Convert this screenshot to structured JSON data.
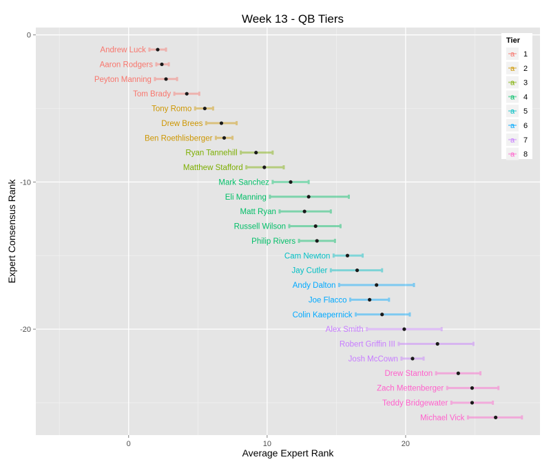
{
  "chart_data": {
    "type": "errorbar",
    "title": "Week 13 - QB Tiers",
    "xlabel": "Average Expert Rank",
    "ylabel": "Expert Consensus Rank",
    "xlim": [
      -6.7,
      29.7
    ],
    "ylim": [
      -27.2,
      0.5
    ],
    "x_ticks": [
      0,
      10,
      20
    ],
    "y_ticks": [
      0,
      -10,
      -20
    ],
    "x_tick_labels": [
      "0",
      "10",
      "20"
    ],
    "y_tick_labels": [
      "0",
      "-10",
      "-20"
    ],
    "grid": true,
    "legend_position": "top-right",
    "legend_title": "Tier",
    "legend_key_glyph": "a",
    "tiers": [
      {
        "tier": "1",
        "color": "#F8766D"
      },
      {
        "tier": "2",
        "color": "#CD9600"
      },
      {
        "tier": "3",
        "color": "#7CAE00"
      },
      {
        "tier": "4",
        "color": "#00BE67"
      },
      {
        "tier": "5",
        "color": "#00BFC4"
      },
      {
        "tier": "6",
        "color": "#00A9FF"
      },
      {
        "tier": "7",
        "color": "#C77CFF"
      },
      {
        "tier": "8",
        "color": "#FF61CC"
      }
    ],
    "series": [
      {
        "name": "Andrew Luck",
        "tier": "1",
        "rank": 1,
        "x": 2.1,
        "xmin": 1.5,
        "xmax": 2.7
      },
      {
        "name": "Aaron Rodgers",
        "tier": "1",
        "rank": 2,
        "x": 2.4,
        "xmin": 2.0,
        "xmax": 2.9
      },
      {
        "name": "Peyton Manning",
        "tier": "1",
        "rank": 3,
        "x": 2.7,
        "xmin": 1.9,
        "xmax": 3.5
      },
      {
        "name": "Tom Brady",
        "tier": "1",
        "rank": 4,
        "x": 4.2,
        "xmin": 3.3,
        "xmax": 5.1
      },
      {
        "name": "Tony Romo",
        "tier": "2",
        "rank": 5,
        "x": 5.5,
        "xmin": 4.8,
        "xmax": 6.1
      },
      {
        "name": "Drew Brees",
        "tier": "2",
        "rank": 6,
        "x": 6.7,
        "xmin": 5.6,
        "xmax": 7.8
      },
      {
        "name": "Ben Roethlisberger",
        "tier": "2",
        "rank": 7,
        "x": 6.9,
        "xmin": 6.3,
        "xmax": 7.5
      },
      {
        "name": "Ryan Tannehill",
        "tier": "3",
        "rank": 8,
        "x": 9.2,
        "xmin": 8.1,
        "xmax": 10.4
      },
      {
        "name": "Matthew Stafford",
        "tier": "3",
        "rank": 9,
        "x": 9.8,
        "xmin": 8.5,
        "xmax": 11.2
      },
      {
        "name": "Mark Sanchez",
        "tier": "4",
        "rank": 10,
        "x": 11.7,
        "xmin": 10.4,
        "xmax": 13.0
      },
      {
        "name": "Eli Manning",
        "tier": "4",
        "rank": 11,
        "x": 13.0,
        "xmin": 10.2,
        "xmax": 15.9
      },
      {
        "name": "Matt Ryan",
        "tier": "4",
        "rank": 12,
        "x": 12.7,
        "xmin": 10.9,
        "xmax": 14.6
      },
      {
        "name": "Russell Wilson",
        "tier": "4",
        "rank": 13,
        "x": 13.5,
        "xmin": 11.6,
        "xmax": 15.3
      },
      {
        "name": "Philip Rivers",
        "tier": "4",
        "rank": 14,
        "x": 13.6,
        "xmin": 12.3,
        "xmax": 14.9
      },
      {
        "name": "Cam Newton",
        "tier": "5",
        "rank": 15,
        "x": 15.8,
        "xmin": 14.8,
        "xmax": 16.9
      },
      {
        "name": "Jay Cutler",
        "tier": "5",
        "rank": 16,
        "x": 16.5,
        "xmin": 14.6,
        "xmax": 18.3
      },
      {
        "name": "Andy Dalton",
        "tier": "6",
        "rank": 17,
        "x": 17.9,
        "xmin": 15.2,
        "xmax": 20.6
      },
      {
        "name": "Joe Flacco",
        "tier": "6",
        "rank": 18,
        "x": 17.4,
        "xmin": 16.0,
        "xmax": 18.8
      },
      {
        "name": "Colin Kaepernick",
        "tier": "6",
        "rank": 19,
        "x": 18.3,
        "xmin": 16.4,
        "xmax": 20.3
      },
      {
        "name": "Alex Smith",
        "tier": "7",
        "rank": 20,
        "x": 19.9,
        "xmin": 17.2,
        "xmax": 22.6
      },
      {
        "name": "Robert Griffin III",
        "tier": "7",
        "rank": 21,
        "x": 22.3,
        "xmin": 19.5,
        "xmax": 24.9
      },
      {
        "name": "Josh McCown",
        "tier": "7",
        "rank": 22,
        "x": 20.5,
        "xmin": 19.7,
        "xmax": 21.3
      },
      {
        "name": "Drew Stanton",
        "tier": "8",
        "rank": 23,
        "x": 23.8,
        "xmin": 22.2,
        "xmax": 25.4
      },
      {
        "name": "Zach Mettenberger",
        "tier": "8",
        "rank": 24,
        "x": 24.8,
        "xmin": 23.0,
        "xmax": 26.7
      },
      {
        "name": "Teddy Bridgewater",
        "tier": "8",
        "rank": 25,
        "x": 24.8,
        "xmin": 23.3,
        "xmax": 26.3
      },
      {
        "name": "Michael Vick",
        "tier": "8",
        "rank": 26,
        "x": 26.5,
        "xmin": 24.5,
        "xmax": 28.4
      }
    ]
  }
}
